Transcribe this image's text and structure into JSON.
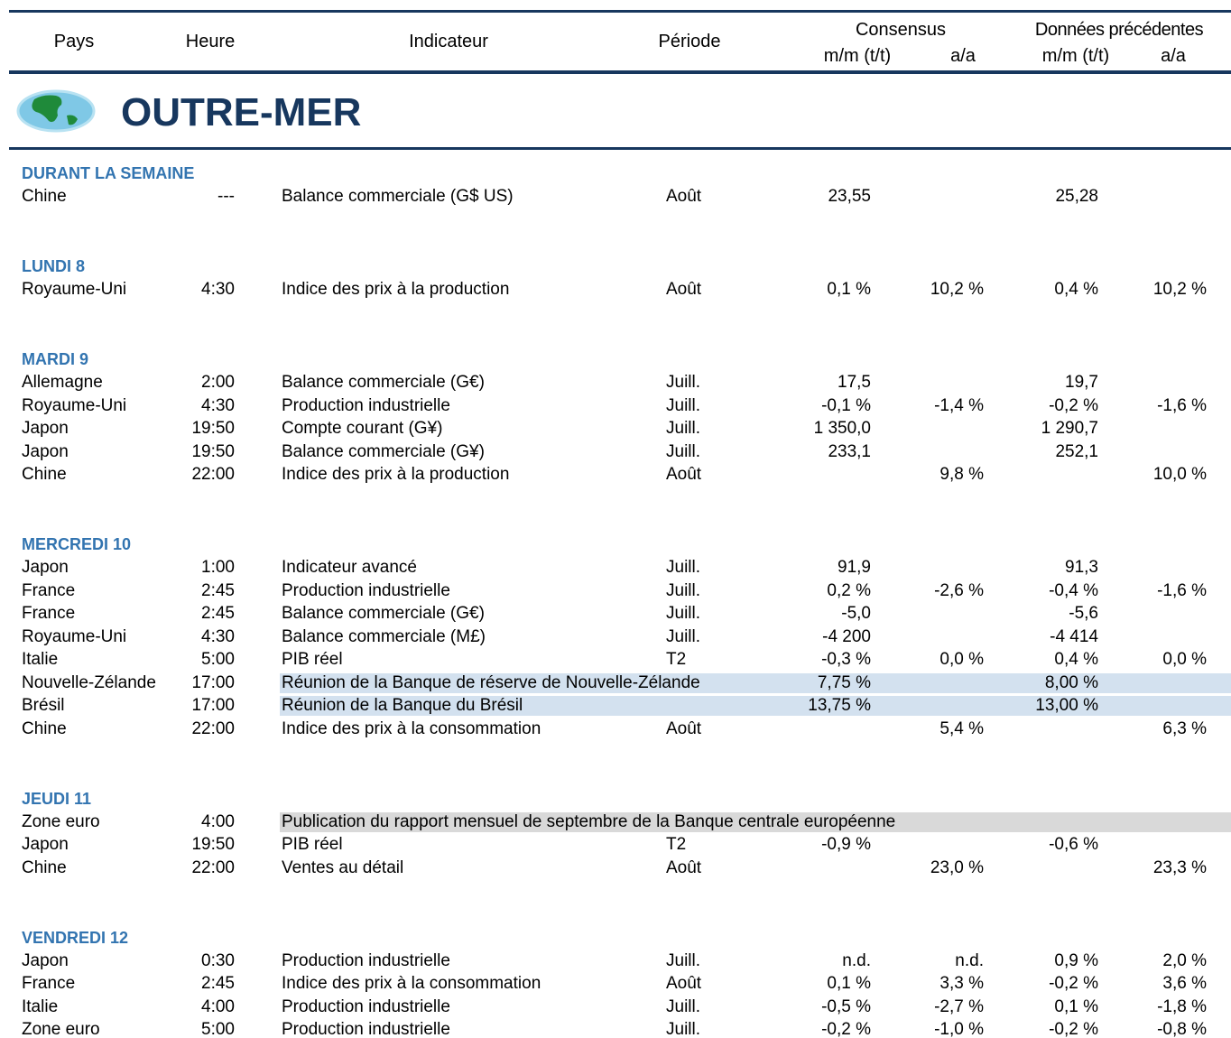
{
  "header": {
    "pays": "Pays",
    "heure": "Heure",
    "indicateur": "Indicateur",
    "periode": "Période",
    "consensus": "Consensus",
    "previous": "Données précédentes",
    "mm1": "m/m (t/t)",
    "aa1": "a/a",
    "mm2": "m/m (t/t)",
    "aa2": "a/a"
  },
  "region": "OUTRE-MER",
  "sections": [
    {
      "title": "DURANT LA SEMAINE",
      "rows": [
        {
          "cells": [
            "Chine",
            "---",
            "Balance commerciale (G$ US)",
            "Août",
            "23,55",
            null,
            "25,28",
            null
          ]
        }
      ]
    },
    {
      "title": "LUNDI 8",
      "rows": [
        {
          "cells": [
            "Royaume-Uni",
            "4:30",
            "Indice des prix à la production",
            "Août",
            "0,1 %",
            "10,2 %",
            "0,4 %",
            "10,2 %"
          ]
        }
      ]
    },
    {
      "title": "MARDI 9",
      "rows": [
        {
          "cells": [
            "Allemagne",
            "2:00",
            "Balance commerciale (G€)",
            "Juill.",
            "17,5",
            null,
            "19,7",
            null
          ]
        },
        {
          "cells": [
            "Royaume-Uni",
            "4:30",
            "Production industrielle",
            "Juill.",
            "-0,1 %",
            "-1,4 %",
            "-0,2 %",
            "-1,6 %"
          ]
        },
        {
          "cells": [
            "Japon",
            "19:50",
            "Compte courant (G¥)",
            "Juill.",
            "1 350,0",
            null,
            "1 290,7",
            null
          ]
        },
        {
          "cells": [
            "Japon",
            "19:50",
            "Balance commerciale (G¥)",
            "Juill.",
            "233,1",
            null,
            "252,1",
            null
          ]
        },
        {
          "cells": [
            "Chine",
            "22:00",
            "Indice des prix à la production",
            "Août",
            null,
            "9,8 %",
            null,
            "10,0 %"
          ]
        }
      ]
    },
    {
      "title": "MERCREDI 10",
      "rows": [
        {
          "cells": [
            "Japon",
            "1:00",
            "Indicateur avancé",
            "Juill.",
            "91,9",
            null,
            "91,3",
            null
          ]
        },
        {
          "cells": [
            "France",
            "2:45",
            "Production industrielle",
            "Juill.",
            "0,2 %",
            "-2,6 %",
            "-0,4 %",
            "-1,6 %"
          ]
        },
        {
          "cells": [
            "France",
            "2:45",
            "Balance commerciale (G€)",
            "Juill.",
            "-5,0",
            null,
            "-5,6",
            null
          ]
        },
        {
          "cells": [
            "Royaume-Uni",
            "4:30",
            "Balance commerciale (M£)",
            "Juill.",
            "-4 200",
            null,
            "-4 414",
            null
          ]
        },
        {
          "cells": [
            "Italie",
            "5:00",
            "PIB réel",
            "T2",
            "-0,3 %",
            "0,0 %",
            "0,4 %",
            "0,0 %"
          ]
        },
        {
          "cells": [
            "Nouvelle-Zélande",
            "17:00",
            "Réunion de la Banque de réserve de Nouvelle-Zélande",
            null,
            "7,75 %",
            null,
            "8,00 %",
            null
          ],
          "highlight": "blue"
        },
        {
          "cells": [
            "Brésil",
            "17:00",
            "Réunion de la Banque du Brésil",
            null,
            "13,75 %",
            null,
            "13,00 %",
            null
          ],
          "highlight": "blue"
        },
        {
          "cells": [
            "Chine",
            "22:00",
            "Indice des prix à la consommation",
            "Août",
            null,
            "5,4 %",
            null,
            "6,3 %"
          ]
        }
      ]
    },
    {
      "title": "JEUDI 11",
      "rows": [
        {
          "cells": [
            "Zone euro",
            "4:00",
            "Publication du rapport mensuel de septembre de la Banque centrale européenne",
            null,
            null,
            null,
            null,
            null
          ],
          "highlight": "gray"
        },
        {
          "cells": [
            "Japon",
            "19:50",
            "PIB réel",
            "T2",
            "-0,9 %",
            null,
            "-0,6 %",
            null
          ]
        },
        {
          "cells": [
            "Chine",
            "22:00",
            "Ventes au détail",
            "Août",
            null,
            "23,0 %",
            null,
            "23,3 %"
          ]
        }
      ]
    },
    {
      "title": "VENDREDI 12",
      "rows": [
        {
          "cells": [
            "Japon",
            "0:30",
            "Production industrielle",
            "Juill.",
            "n.d.",
            "n.d.",
            "0,9 %",
            "2,0 %"
          ]
        },
        {
          "cells": [
            "France",
            "2:45",
            "Indice des prix à la consommation",
            "Août",
            "0,1 %",
            "3,3 %",
            "-0,2 %",
            "3,6 %"
          ]
        },
        {
          "cells": [
            "Italie",
            "4:00",
            "Production industrielle",
            "Juill.",
            "-0,5 %",
            "-2,7 %",
            "0,1 %",
            "-1,8 %"
          ]
        },
        {
          "cells": [
            "Zone euro",
            "5:00",
            "Production industrielle",
            "Juill.",
            "-0,2 %",
            "-1,0 %",
            "-0,2 %",
            "-0,8 %"
          ]
        }
      ]
    }
  ]
}
